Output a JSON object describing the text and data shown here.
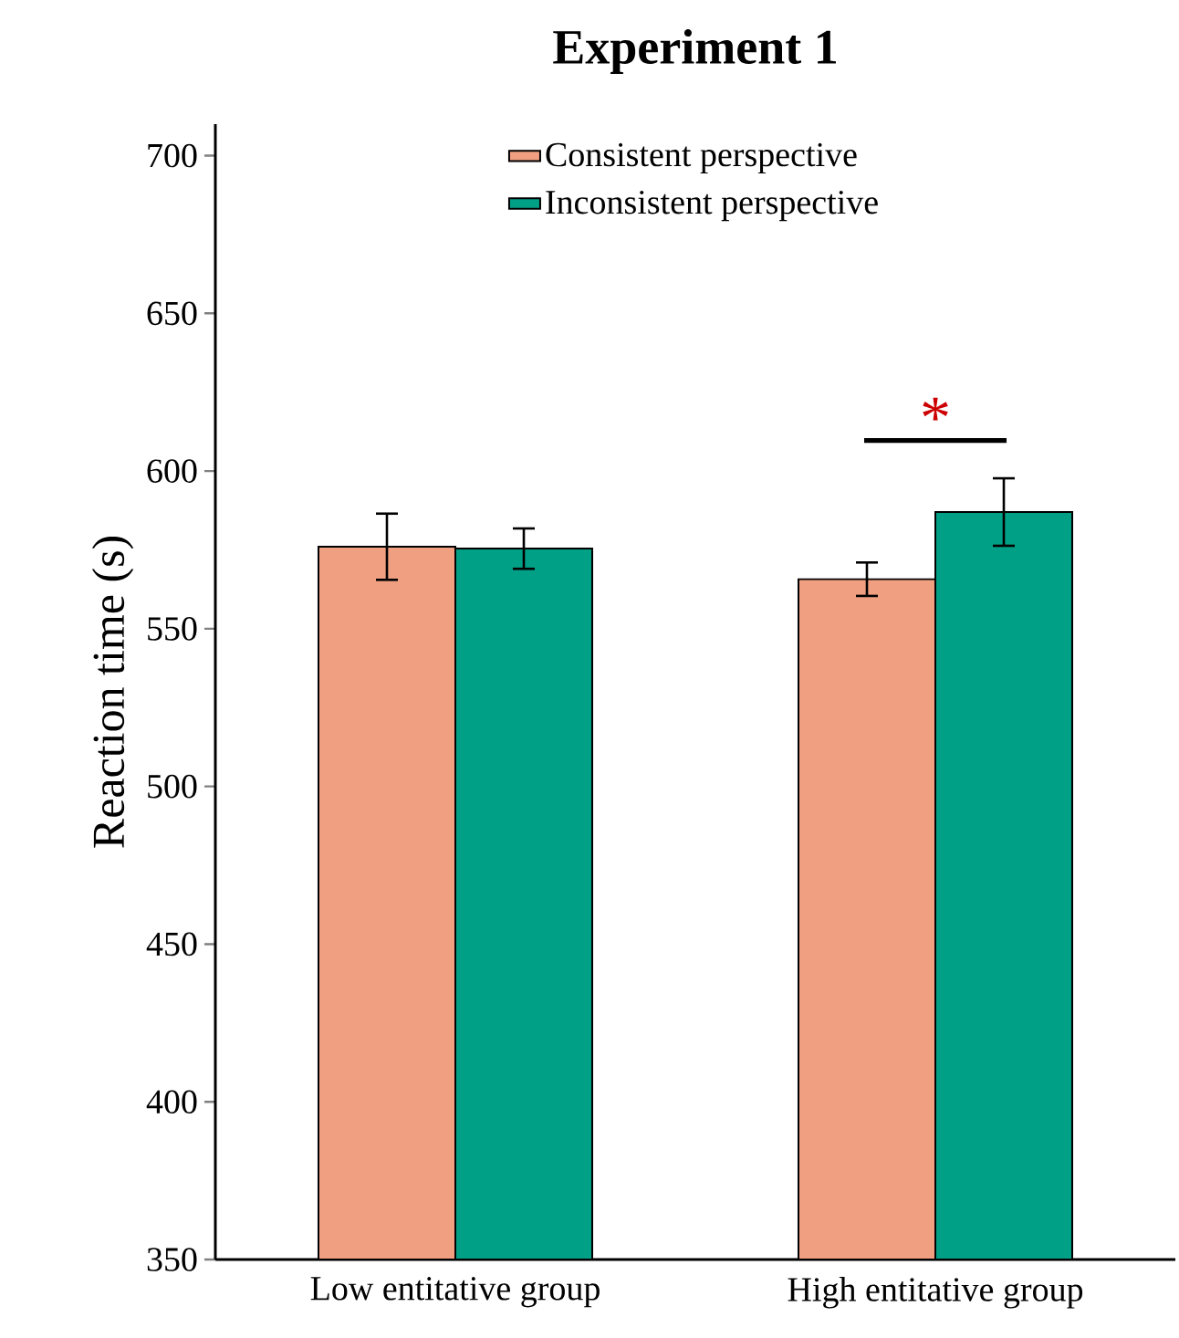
{
  "chart_data": {
    "type": "bar",
    "title": "Experiment 1",
    "ylabel": "Reaction time (s)",
    "categories": [
      "Low entitative group",
      "High entitative group"
    ],
    "series": [
      {
        "name": "Consistent perspective",
        "color": "#f09f80",
        "values": [
          576,
          565.7
        ],
        "errors": [
          10.5,
          5.3
        ]
      },
      {
        "name": "Inconsistent perspective",
        "color": "#00a087",
        "values": [
          575.4,
          587
        ],
        "errors": [
          6.4,
          10.7
        ]
      }
    ],
    "ylim": [
      350,
      710
    ],
    "yticks": [
      350,
      400,
      450,
      500,
      550,
      600,
      650,
      700
    ],
    "legend": "top",
    "grid": false,
    "annotations": [
      "*"
    ]
  }
}
